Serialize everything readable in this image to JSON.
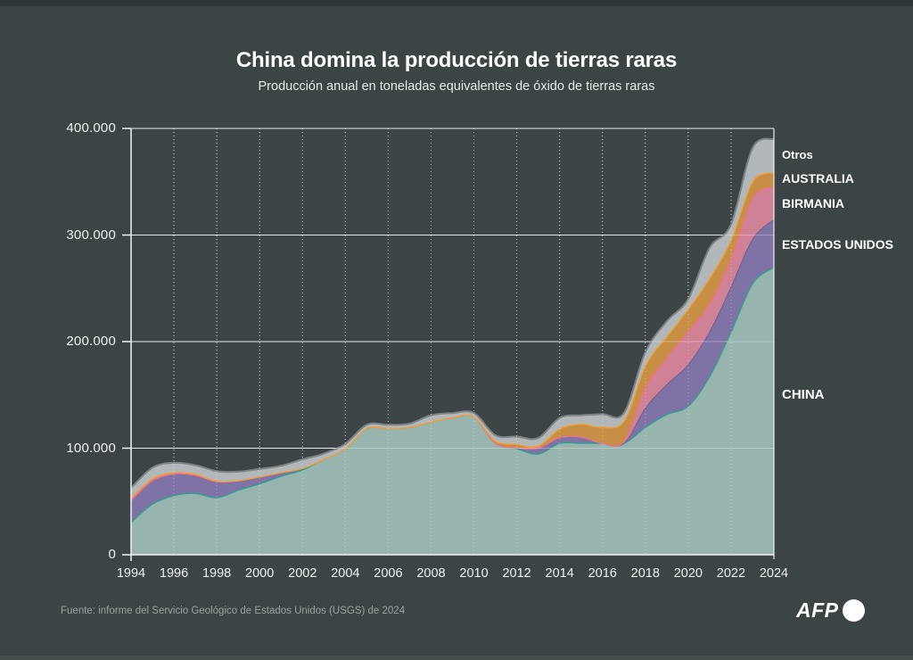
{
  "header": {
    "title": "China domina la producción de tierras raras",
    "subtitle": "Producción anual en toneladas equivalentes de óxido de tierras raras"
  },
  "footer": {
    "source": "Fuente: informe del Servicio Geológico de Estados Unidos (USGS) de 2024",
    "brand": "AFP"
  },
  "colors": {
    "background": "#3c4445",
    "grid_line": "#ffffff",
    "axis": "#f2f4f4",
    "text": "#ffffff",
    "muted_text": "#9aa3a1"
  },
  "chart_data": {
    "type": "area",
    "stacked": true,
    "title": "China domina la producción de tierras raras",
    "subtitle": "Producción anual en toneladas equivalentes de óxido de tierras raras",
    "xlabel": "",
    "ylabel": "toneladas equivalentes de óxido de tierras raras",
    "xlim": [
      1994,
      2024
    ],
    "ylim": [
      0,
      400000
    ],
    "grid": true,
    "legend_position": "right",
    "x": [
      1994,
      1995,
      1996,
      1997,
      1998,
      1999,
      2000,
      2001,
      2002,
      2003,
      2004,
      2005,
      2006,
      2007,
      2008,
      2009,
      2010,
      2011,
      2012,
      2013,
      2014,
      2015,
      2016,
      2017,
      2018,
      2019,
      2020,
      2021,
      2022,
      2023,
      2024
    ],
    "x_ticks": [
      1994,
      1996,
      1998,
      2000,
      2002,
      2004,
      2006,
      2008,
      2010,
      2012,
      2014,
      2016,
      2018,
      2020,
      2022,
      2024
    ],
    "x_tick_labels": [
      "1994",
      "1996",
      "1998",
      "2000",
      "2002",
      "2004",
      "2006",
      "2008",
      "2010",
      "2012",
      "2014",
      "2016",
      "2018",
      "2020",
      "2022",
      "2024"
    ],
    "y_ticks": [
      0,
      100000,
      200000,
      300000,
      400000
    ],
    "y_tick_labels": [
      "0",
      "100.000",
      "200.000",
      "300.000",
      "400.000"
    ],
    "series": [
      {
        "name": "CHINA",
        "fill": "#97b4ae",
        "stroke": "#2aa491",
        "values": [
          31000,
          48000,
          56000,
          58000,
          54000,
          61000,
          67000,
          74000,
          80000,
          90000,
          100000,
          119000,
          119000,
          120000,
          125000,
          129000,
          130000,
          105000,
          100000,
          95000,
          105000,
          105000,
          105000,
          105000,
          120000,
          132000,
          140000,
          168000,
          210000,
          255000,
          270000
        ]
      },
      {
        "name": "ESTADOS UNIDOS",
        "fill": "#7f72a4",
        "stroke": "#6e5f97",
        "values": [
          20700,
          22200,
          20400,
          17000,
          15000,
          9000,
          6500,
          3500,
          1500,
          0,
          0,
          0,
          0,
          0,
          0,
          0,
          0,
          0,
          800,
          5500,
          5400,
          5900,
          0,
          0,
          18000,
          28000,
          39000,
          42000,
          42000,
          41600,
          45000
        ]
      },
      {
        "name": "BIRMANIA",
        "fill": "#cf8196",
        "stroke": "#f46d93",
        "values": [
          0,
          0,
          0,
          0,
          0,
          0,
          0,
          0,
          0,
          0,
          0,
          0,
          0,
          0,
          0,
          0,
          0,
          0,
          0,
          0,
          0,
          0,
          0,
          2000,
          19000,
          25000,
          31000,
          26000,
          26000,
          38000,
          31000
        ]
      },
      {
        "name": "AUSTRALIA",
        "fill": "#c78f46",
        "stroke": "#f59e2c",
        "values": [
          2000,
          1500,
          1000,
          1000,
          500,
          0,
          0,
          0,
          0,
          0,
          0,
          0,
          0,
          0,
          0,
          0,
          0,
          2200,
          3200,
          2000,
          8000,
          12000,
          15000,
          19000,
          21000,
          20000,
          21000,
          24000,
          18000,
          16000,
          13000
        ]
      },
      {
        "name": "Otros",
        "fill": "#b2b7b9",
        "stroke": "#7c8285",
        "values": [
          9000,
          10000,
          9000,
          8000,
          9000,
          8000,
          7000,
          6000,
          8000,
          5000,
          4000,
          3000,
          3000,
          3000,
          6000,
          4000,
          3000,
          5000,
          7000,
          7000,
          10000,
          8000,
          12000,
          7000,
          12000,
          14000,
          9000,
          28000,
          14000,
          31000,
          31000
        ]
      }
    ]
  }
}
